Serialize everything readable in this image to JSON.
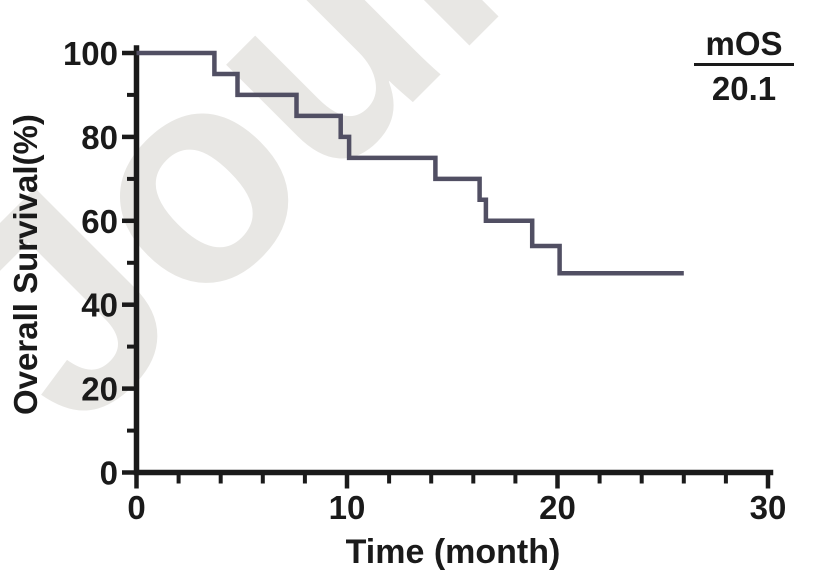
{
  "figure": {
    "watermark_text": "Journ",
    "watermark_color": "#e8e7e4",
    "annotation": {
      "label": "mOS",
      "value": "20.1"
    }
  },
  "chart_data": {
    "type": "line",
    "subtype": "kaplan_meier_step_curve",
    "title": "",
    "xlabel": "Time (month)",
    "ylabel": "Overall Survival(%)",
    "xlim": [
      0,
      30
    ],
    "ylim": [
      0,
      100
    ],
    "x_major_ticks": [
      0,
      10,
      20,
      30
    ],
    "x_minor_tick_step": 2,
    "y_major_ticks": [
      0,
      20,
      40,
      60,
      80,
      100
    ],
    "y_minor_tick_step": 10,
    "grid": false,
    "legend_position": "none",
    "axis_color": "#1a1a1a",
    "median_os_months": 20.1,
    "series": [
      {
        "name": "Overall Survival",
        "color": "#514f63",
        "line_width": 4.5,
        "start": {
          "t": 0,
          "s": 100
        },
        "drops": [
          {
            "t": 3.7,
            "s": 95
          },
          {
            "t": 4.8,
            "s": 90
          },
          {
            "t": 7.6,
            "s": 85
          },
          {
            "t": 9.7,
            "s": 80
          },
          {
            "t": 10.1,
            "s": 75
          },
          {
            "t": 14.2,
            "s": 70
          },
          {
            "t": 16.3,
            "s": 65
          },
          {
            "t": 16.6,
            "s": 60
          },
          {
            "t": 18.8,
            "s": 54
          },
          {
            "t": 20.1,
            "s": 47.5
          }
        ],
        "end_time": 26,
        "final_survival": 47.5
      }
    ]
  }
}
